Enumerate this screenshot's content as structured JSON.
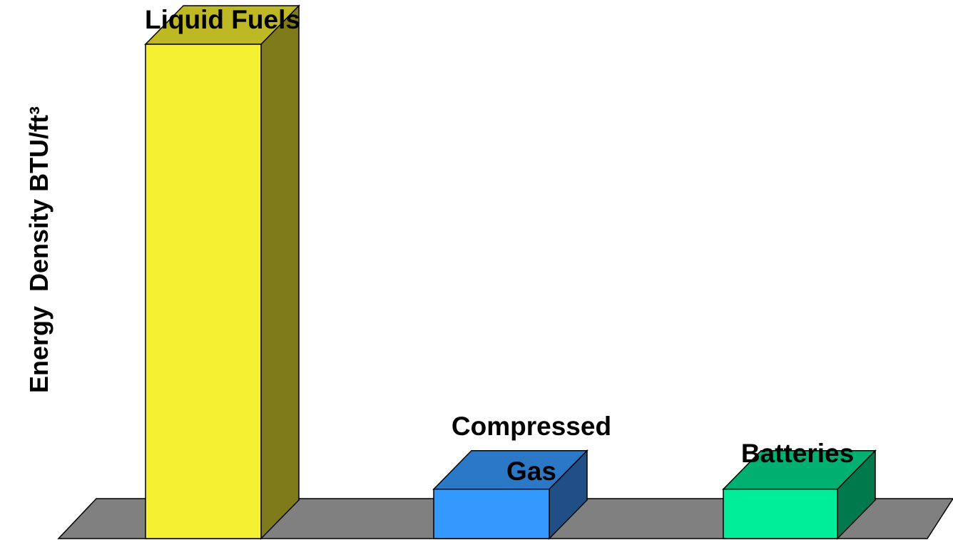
{
  "chart_data": {
    "type": "bar3d",
    "y_label": "Energy  Density BTU/ft³",
    "categories": [
      "Liquid Fuels",
      "Compressed\nGas",
      "Batteries"
    ],
    "values": [
      100,
      10,
      10
    ],
    "ylim": [
      0,
      100
    ],
    "colors": [
      {
        "front": "#f5f032",
        "top": "#bdb824",
        "side": "#7f7a1a"
      },
      {
        "front": "#3399ff",
        "top": "#2a78c6",
        "side": "#1f4f86"
      },
      {
        "front": "#00ee99",
        "top": "#00b070",
        "side": "#007a4c"
      }
    ],
    "floor_color": "#808080"
  }
}
